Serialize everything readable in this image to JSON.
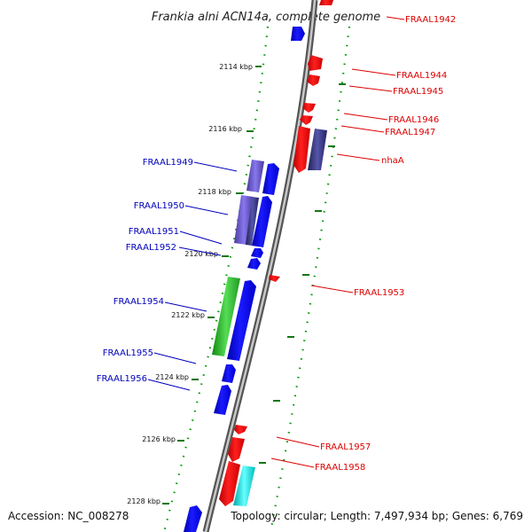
{
  "title": "Frankia alni ACN14a, complete genome",
  "footer": {
    "accession": "Accession: NC_008278",
    "summary": "Topology: circular; Length: 7,497,934 bp; Genes: 6,769"
  },
  "colors": {
    "forward": "#0000ee",
    "reverse": "#ee0000",
    "backbone": "#888888",
    "tick": "#008800",
    "forward_label": "#0000bb",
    "reverse_label": "#dd0000"
  },
  "ruler": {
    "unit_label": "kbp",
    "ticks": [
      {
        "kbp": 2114,
        "label": "2114 kbp"
      },
      {
        "kbp": 2116,
        "label": "2116 kbp"
      },
      {
        "kbp": 2118,
        "label": "2118 kbp"
      },
      {
        "kbp": 2120,
        "label": "2120 kbp"
      },
      {
        "kbp": 2122,
        "label": "2122 kbp"
      },
      {
        "kbp": 2124,
        "label": "2124 kbp"
      },
      {
        "kbp": 2126,
        "label": "2126 kbp"
      },
      {
        "kbp": 2128,
        "label": "2128 kbp"
      }
    ]
  },
  "genes": [
    {
      "name": "FRAAL1942",
      "strand": "reverse",
      "labeled": true
    },
    {
      "name": "FRAAL1944",
      "strand": "reverse",
      "labeled": true
    },
    {
      "name": "FRAAL1945",
      "strand": "reverse",
      "labeled": true
    },
    {
      "name": "FRAAL1946",
      "strand": "reverse",
      "labeled": true
    },
    {
      "name": "FRAAL1947",
      "strand": "reverse",
      "labeled": true
    },
    {
      "name": "nhaA",
      "strand": "reverse",
      "labeled": true
    },
    {
      "name": "FRAAL1949",
      "strand": "forward",
      "labeled": true
    },
    {
      "name": "FRAAL1950",
      "strand": "forward",
      "labeled": true
    },
    {
      "name": "FRAAL1951",
      "strand": "forward",
      "labeled": true
    },
    {
      "name": "FRAAL1952",
      "strand": "forward",
      "labeled": true
    },
    {
      "name": "FRAAL1953",
      "strand": "reverse",
      "labeled": true
    },
    {
      "name": "FRAAL1954",
      "strand": "forward",
      "labeled": true
    },
    {
      "name": "FRAAL1955",
      "strand": "forward",
      "labeled": true
    },
    {
      "name": "FRAAL1956",
      "strand": "forward",
      "labeled": true
    },
    {
      "name": "FRAAL1957",
      "strand": "reverse",
      "labeled": true
    },
    {
      "name": "FRAAL1958",
      "strand": "reverse",
      "labeled": true
    }
  ]
}
